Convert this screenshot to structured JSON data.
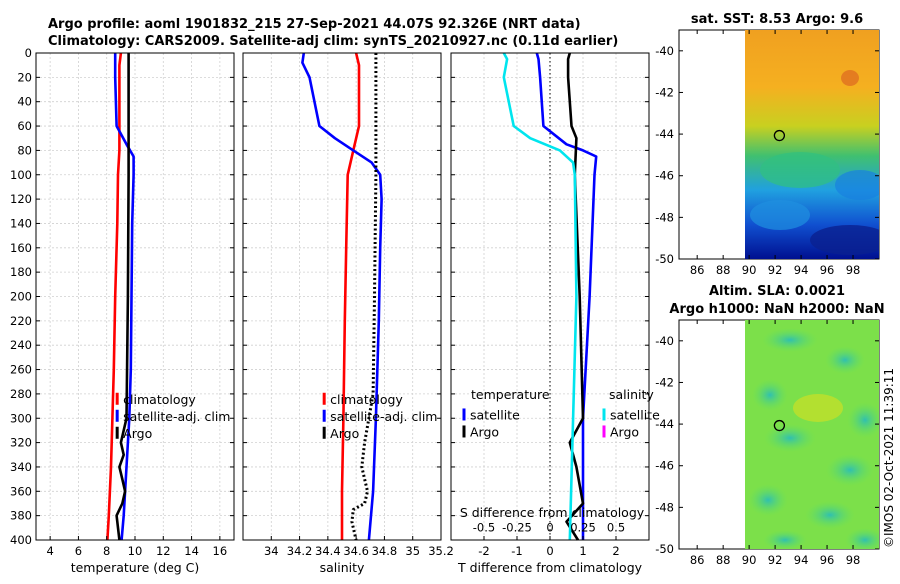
{
  "title": {
    "line1": "Argo profile: aoml 1901832_215 27-Sep-2021 44.07S 92.326E (NRT data)",
    "line2": "Climatology: CARS2009. Satellite-adj clim: synTS_20210927.nc (0.11d earlier)"
  },
  "colors": {
    "clim": "#ff0000",
    "sat": "#0000ff",
    "argo": "#000000",
    "cyan": "#00e5ee",
    "magenta": "#ff00ff"
  },
  "depth_axis": {
    "ylim": [
      0,
      400
    ],
    "ticks": [
      0,
      20,
      40,
      60,
      80,
      100,
      120,
      140,
      160,
      180,
      200,
      220,
      240,
      260,
      280,
      300,
      320,
      340,
      360,
      380,
      400
    ]
  },
  "chart_data": [
    {
      "type": "line",
      "name": "temperature-panel",
      "xlabel": "temperature (deg C)",
      "ylabel": "depth",
      "xlim": [
        3,
        17
      ],
      "ylim": [
        400,
        0
      ],
      "xticks": [
        4,
        6,
        8,
        10,
        12,
        14,
        16
      ],
      "grid": true,
      "legend": {
        "position": "bottom-right",
        "entries": [
          "climatology",
          "satellite-adj. clim",
          "Argo"
        ]
      },
      "series": [
        {
          "name": "climatology",
          "color": "#ff0000",
          "style": "solid",
          "depth": [
            0,
            10,
            20,
            40,
            60,
            80,
            100,
            140,
            200,
            260,
            300,
            340,
            380,
            400
          ],
          "values": [
            9.0,
            8.9,
            8.9,
            8.9,
            8.9,
            8.9,
            8.8,
            8.75,
            8.6,
            8.5,
            8.4,
            8.3,
            8.15,
            8.05
          ]
        },
        {
          "name": "satellite-adj. clim",
          "color": "#0000ff",
          "style": "solid",
          "depth": [
            0,
            5,
            20,
            60,
            75,
            85,
            100,
            140,
            200,
            260,
            300,
            340,
            380,
            400
          ],
          "values": [
            8.6,
            8.6,
            8.6,
            8.7,
            9.4,
            9.9,
            9.9,
            9.8,
            9.75,
            9.7,
            9.6,
            9.4,
            9.2,
            9.05
          ]
        },
        {
          "name": "Argo",
          "color": "#000000",
          "style": "solid",
          "depth": [
            0,
            50,
            100,
            200,
            300,
            320,
            330,
            340,
            350,
            360,
            370,
            380,
            390,
            400
          ],
          "values": [
            9.55,
            9.55,
            9.55,
            9.5,
            9.4,
            9.0,
            9.2,
            8.9,
            9.1,
            9.3,
            9.1,
            8.7,
            8.8,
            8.9
          ]
        }
      ]
    },
    {
      "type": "line",
      "name": "salinity-panel",
      "xlabel": "salinity",
      "ylabel": "depth",
      "xlim": [
        33.8,
        35.2
      ],
      "ylim": [
        400,
        0
      ],
      "xticks": [
        34,
        34.2,
        34.4,
        34.6,
        34.8,
        35,
        35.2
      ],
      "grid": true,
      "legend": {
        "position": "bottom-right",
        "entries": [
          "climatology",
          "satellite-adj. clim",
          "Argo"
        ]
      },
      "series": [
        {
          "name": "climatology",
          "color": "#ff0000",
          "style": "solid",
          "depth": [
            0,
            10,
            60,
            80,
            100,
            160,
            220,
            300,
            360,
            400
          ],
          "values": [
            34.6,
            34.62,
            34.62,
            34.58,
            34.54,
            34.53,
            34.52,
            34.51,
            34.5,
            34.5
          ]
        },
        {
          "name": "satellite-adj. clim",
          "color": "#0000ff",
          "style": "solid",
          "depth": [
            0,
            8,
            20,
            60,
            70,
            80,
            90,
            100,
            120,
            160,
            220,
            300,
            360,
            400
          ],
          "values": [
            34.23,
            34.22,
            34.27,
            34.34,
            34.45,
            34.58,
            34.71,
            34.77,
            34.78,
            34.77,
            34.76,
            34.74,
            34.72,
            34.69
          ]
        },
        {
          "name": "Argo",
          "color": "#000000",
          "style": "dotted",
          "depth": [
            0,
            100,
            200,
            280,
            300,
            320,
            340,
            350,
            360,
            370,
            375,
            385,
            395,
            400
          ],
          "values": [
            34.74,
            34.74,
            34.73,
            34.72,
            34.69,
            34.66,
            34.64,
            34.66,
            34.68,
            34.66,
            34.58,
            34.57,
            34.59,
            34.6
          ]
        }
      ]
    },
    {
      "type": "line",
      "name": "difference-panel",
      "xlabel": "T difference from climatology",
      "xlabel_top": "S difference from climatology",
      "xlim": [
        -3,
        3
      ],
      "ylim": [
        400,
        0
      ],
      "xticks": [
        -2,
        -1,
        0,
        1,
        2
      ],
      "xticks_s": [
        -0.5,
        -0.25,
        0,
        0.25,
        0.5
      ],
      "grid": true,
      "legend": {
        "position": "bottom",
        "temperature_title": "temperature",
        "salinity_title": "salinity",
        "entries": [
          "satellite",
          "Argo",
          "satellite",
          "Argo"
        ]
      },
      "series": [
        {
          "name": "T satellite",
          "color": "#0000ff",
          "depth": [
            0,
            5,
            20,
            60,
            75,
            80,
            85,
            100,
            200,
            300,
            400
          ],
          "values": [
            -0.4,
            -0.35,
            -0.3,
            -0.2,
            0.5,
            1.0,
            1.4,
            1.35,
            1.2,
            1.0,
            1.0
          ]
        },
        {
          "name": "T Argo",
          "color": "#000000",
          "depth": [
            0,
            5,
            20,
            60,
            70,
            100,
            200,
            300,
            320,
            340,
            370,
            385,
            400
          ],
          "values": [
            0.6,
            0.55,
            0.55,
            0.65,
            0.8,
            0.75,
            0.9,
            1.0,
            0.6,
            0.8,
            1.0,
            0.5,
            0.85
          ]
        },
        {
          "name": "S satellite",
          "color": "#00e5ee",
          "depth": [
            0,
            5,
            20,
            60,
            70,
            80,
            90,
            100,
            200,
            300,
            400
          ],
          "values": [
            -1.4,
            -1.3,
            -1.4,
            -1.1,
            -0.6,
            0.3,
            0.7,
            0.75,
            0.8,
            0.7,
            0.6
          ]
        }
      ]
    }
  ],
  "maps": {
    "sst": {
      "title": "sat. SST: 8.53 Argo: 9.6",
      "yticks": [
        -40,
        -42,
        -44,
        -46,
        -48,
        -50
      ],
      "xticks": [
        86,
        88,
        90,
        92,
        94,
        96,
        98
      ],
      "marker_lon": 92.33,
      "marker_lat": -44.07
    },
    "sla": {
      "title1": "Altim. SLA: 0.0021",
      "title2": "Argo h1000: NaN h2000: NaN",
      "yticks": [
        -40,
        -42,
        -44,
        -46,
        -48,
        -50
      ],
      "xticks": [
        86,
        88,
        90,
        92,
        94,
        96,
        98
      ],
      "marker_lon": 92.33,
      "marker_lat": -44.07
    }
  },
  "credit": "©IMOS 02-Oct-2021 11:39:11"
}
